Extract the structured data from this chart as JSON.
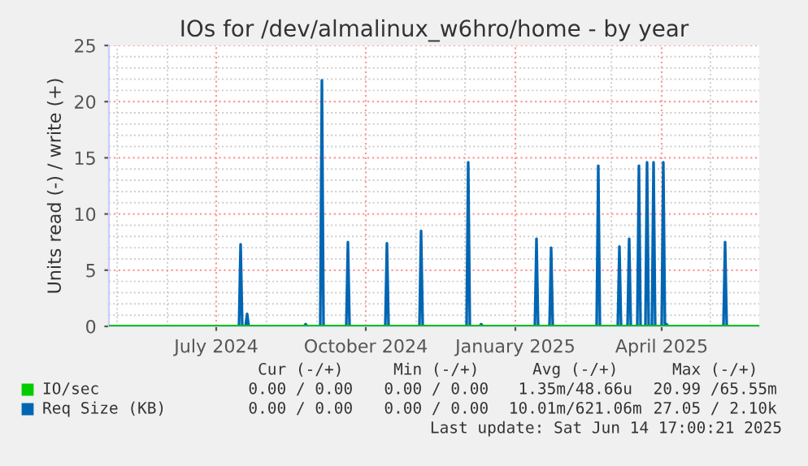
{
  "chart_data": {
    "type": "line",
    "title": "IOs for /dev/almalinux_w6hro/home - by year",
    "ylabel": "Units read (-) / write (+)",
    "xlim": [
      "2024-04-26",
      "2025-05-31"
    ],
    "ylim": [
      0,
      25
    ],
    "yticks": [
      0,
      5,
      10,
      15,
      20,
      25
    ],
    "xticks": [
      {
        "value": "2024-07-01",
        "label": "July 2024"
      },
      {
        "value": "2024-10-01",
        "label": "October 2024"
      },
      {
        "value": "2025-01-01",
        "label": "January 2025"
      },
      {
        "value": "2025-04-01",
        "label": "April 2025"
      }
    ],
    "grid": true,
    "legend": "bottom",
    "marker": "none",
    "line_style": "solid",
    "series": [
      {
        "name": "IO/sec",
        "color": "#00cc00",
        "x": [
          "2024-04-26",
          "2025-05-31"
        ],
        "values": [
          0,
          0
        ]
      },
      {
        "name": "Req Size (KB)",
        "color": "#0066b3",
        "x": [
          "2024-07-15",
          "2024-07-16",
          "2024-07-17",
          "2024-07-19",
          "2024-07-20",
          "2024-07-21",
          "2024-08-24",
          "2024-08-25",
          "2024-08-26",
          "2024-09-03",
          "2024-09-04",
          "2024-09-05",
          "2024-09-19",
          "2024-09-20",
          "2024-09-21",
          "2024-10-13",
          "2024-10-14",
          "2024-10-15",
          "2024-11-03",
          "2024-11-04",
          "2024-11-05",
          "2024-12-02",
          "2024-12-03",
          "2024-12-04",
          "2024-12-10",
          "2024-12-11",
          "2024-12-12",
          "2025-01-13",
          "2025-01-14",
          "2025-01-15",
          "2025-01-22",
          "2025-01-23",
          "2025-01-24",
          "2025-02-20",
          "2025-02-21",
          "2025-02-22",
          "2025-03-05",
          "2025-03-06",
          "2025-03-07",
          "2025-03-11",
          "2025-03-12",
          "2025-03-13",
          "2025-03-17",
          "2025-03-18",
          "2025-03-19",
          "2025-03-22",
          "2025-03-23",
          "2025-03-24",
          "2025-03-26",
          "2025-03-27",
          "2025-03-28",
          "2025-04-01",
          "2025-04-02",
          "2025-04-03",
          "2025-04-04",
          "2025-04-05",
          "2025-05-09",
          "2025-05-10",
          "2025-05-11"
        ],
        "values": [
          0,
          7.3,
          0,
          0,
          1.1,
          0,
          0,
          0.2,
          0,
          0,
          21.9,
          0,
          0,
          7.5,
          0,
          0,
          7.4,
          0,
          0,
          8.5,
          0,
          0,
          14.6,
          0,
          0,
          0.2,
          0,
          0,
          7.8,
          0,
          0,
          7.0,
          0,
          0,
          14.3,
          0,
          0,
          7.1,
          0,
          0,
          7.8,
          0,
          0,
          14.3,
          0,
          0,
          14.6,
          0,
          0,
          14.6,
          0,
          0,
          14.6,
          0,
          0.2,
          0,
          0,
          7.5,
          0
        ]
      }
    ],
    "annotations": [
      "Cur (-/+)",
      "Min (-/+)",
      "Avg (-/+)",
      "Max (-/+)",
      "0.00 / 0.00",
      "0.00 / 0.00",
      "1.35m/48.66u",
      "20.99 /65.55m",
      "0.00 / 0.00",
      "0.00 / 0.00",
      "10.01m/621.06m",
      "27.05 / 2.10k",
      "Last update: Sat Jun 14 17:00:21 2025"
    ]
  }
}
